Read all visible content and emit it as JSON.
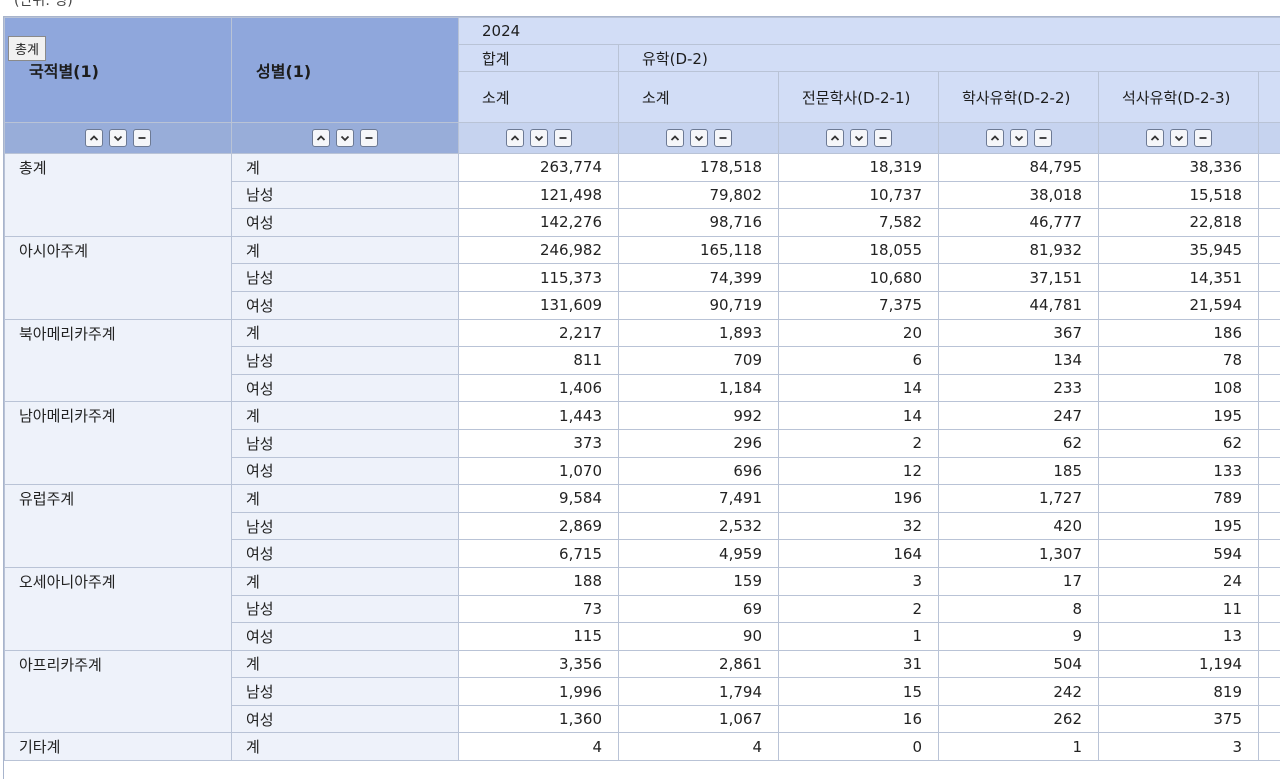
{
  "top_cut_text": "(단위: 명)",
  "tooltip": "총계",
  "header": {
    "dim1": "국적별(1)",
    "dim2": "성별(1)",
    "year": "2024",
    "group_total": "합계",
    "group_study": "유학(D-2)",
    "cols": [
      "소계",
      "소계",
      "전문학사(D-2-1)",
      "학사유학(D-2-2)",
      "석사유학(D-2-3)"
    ]
  },
  "controls": {
    "up_icon": "chevron-up-icon",
    "down_icon": "chevron-down-icon",
    "minus_icon": "minus-icon"
  },
  "rows": [
    {
      "region": "총계",
      "items": [
        {
          "sex": "계",
          "vals": [
            "263,774",
            "178,518",
            "18,319",
            "84,795",
            "38,336"
          ]
        },
        {
          "sex": "남성",
          "vals": [
            "121,498",
            "79,802",
            "10,737",
            "38,018",
            "15,518"
          ]
        },
        {
          "sex": "여성",
          "vals": [
            "142,276",
            "98,716",
            "7,582",
            "46,777",
            "22,818"
          ]
        }
      ]
    },
    {
      "region": "아시아주계",
      "items": [
        {
          "sex": "계",
          "vals": [
            "246,982",
            "165,118",
            "18,055",
            "81,932",
            "35,945"
          ]
        },
        {
          "sex": "남성",
          "vals": [
            "115,373",
            "74,399",
            "10,680",
            "37,151",
            "14,351"
          ]
        },
        {
          "sex": "여성",
          "vals": [
            "131,609",
            "90,719",
            "7,375",
            "44,781",
            "21,594"
          ]
        }
      ]
    },
    {
      "region": "북아메리카주계",
      "items": [
        {
          "sex": "계",
          "vals": [
            "2,217",
            "1,893",
            "20",
            "367",
            "186"
          ]
        },
        {
          "sex": "남성",
          "vals": [
            "811",
            "709",
            "6",
            "134",
            "78"
          ]
        },
        {
          "sex": "여성",
          "vals": [
            "1,406",
            "1,184",
            "14",
            "233",
            "108"
          ]
        }
      ]
    },
    {
      "region": "남아메리카주계",
      "items": [
        {
          "sex": "계",
          "vals": [
            "1,443",
            "992",
            "14",
            "247",
            "195"
          ]
        },
        {
          "sex": "남성",
          "vals": [
            "373",
            "296",
            "2",
            "62",
            "62"
          ]
        },
        {
          "sex": "여성",
          "vals": [
            "1,070",
            "696",
            "12",
            "185",
            "133"
          ]
        }
      ]
    },
    {
      "region": "유럽주계",
      "items": [
        {
          "sex": "계",
          "vals": [
            "9,584",
            "7,491",
            "196",
            "1,727",
            "789"
          ]
        },
        {
          "sex": "남성",
          "vals": [
            "2,869",
            "2,532",
            "32",
            "420",
            "195"
          ]
        },
        {
          "sex": "여성",
          "vals": [
            "6,715",
            "4,959",
            "164",
            "1,307",
            "594"
          ]
        }
      ]
    },
    {
      "region": "오세아니아주계",
      "items": [
        {
          "sex": "계",
          "vals": [
            "188",
            "159",
            "3",
            "17",
            "24"
          ]
        },
        {
          "sex": "남성",
          "vals": [
            "73",
            "69",
            "2",
            "8",
            "11"
          ]
        },
        {
          "sex": "여성",
          "vals": [
            "115",
            "90",
            "1",
            "9",
            "13"
          ]
        }
      ]
    },
    {
      "region": "아프리카주계",
      "items": [
        {
          "sex": "계",
          "vals": [
            "3,356",
            "2,861",
            "31",
            "504",
            "1,194"
          ]
        },
        {
          "sex": "남성",
          "vals": [
            "1,996",
            "1,794",
            "15",
            "242",
            "819"
          ]
        },
        {
          "sex": "여성",
          "vals": [
            "1,360",
            "1,067",
            "16",
            "262",
            "375"
          ]
        }
      ]
    },
    {
      "region": "기타계",
      "items": [
        {
          "sex": "계",
          "vals": [
            "4",
            "4",
            "0",
            "1",
            "3"
          ]
        }
      ]
    }
  ]
}
